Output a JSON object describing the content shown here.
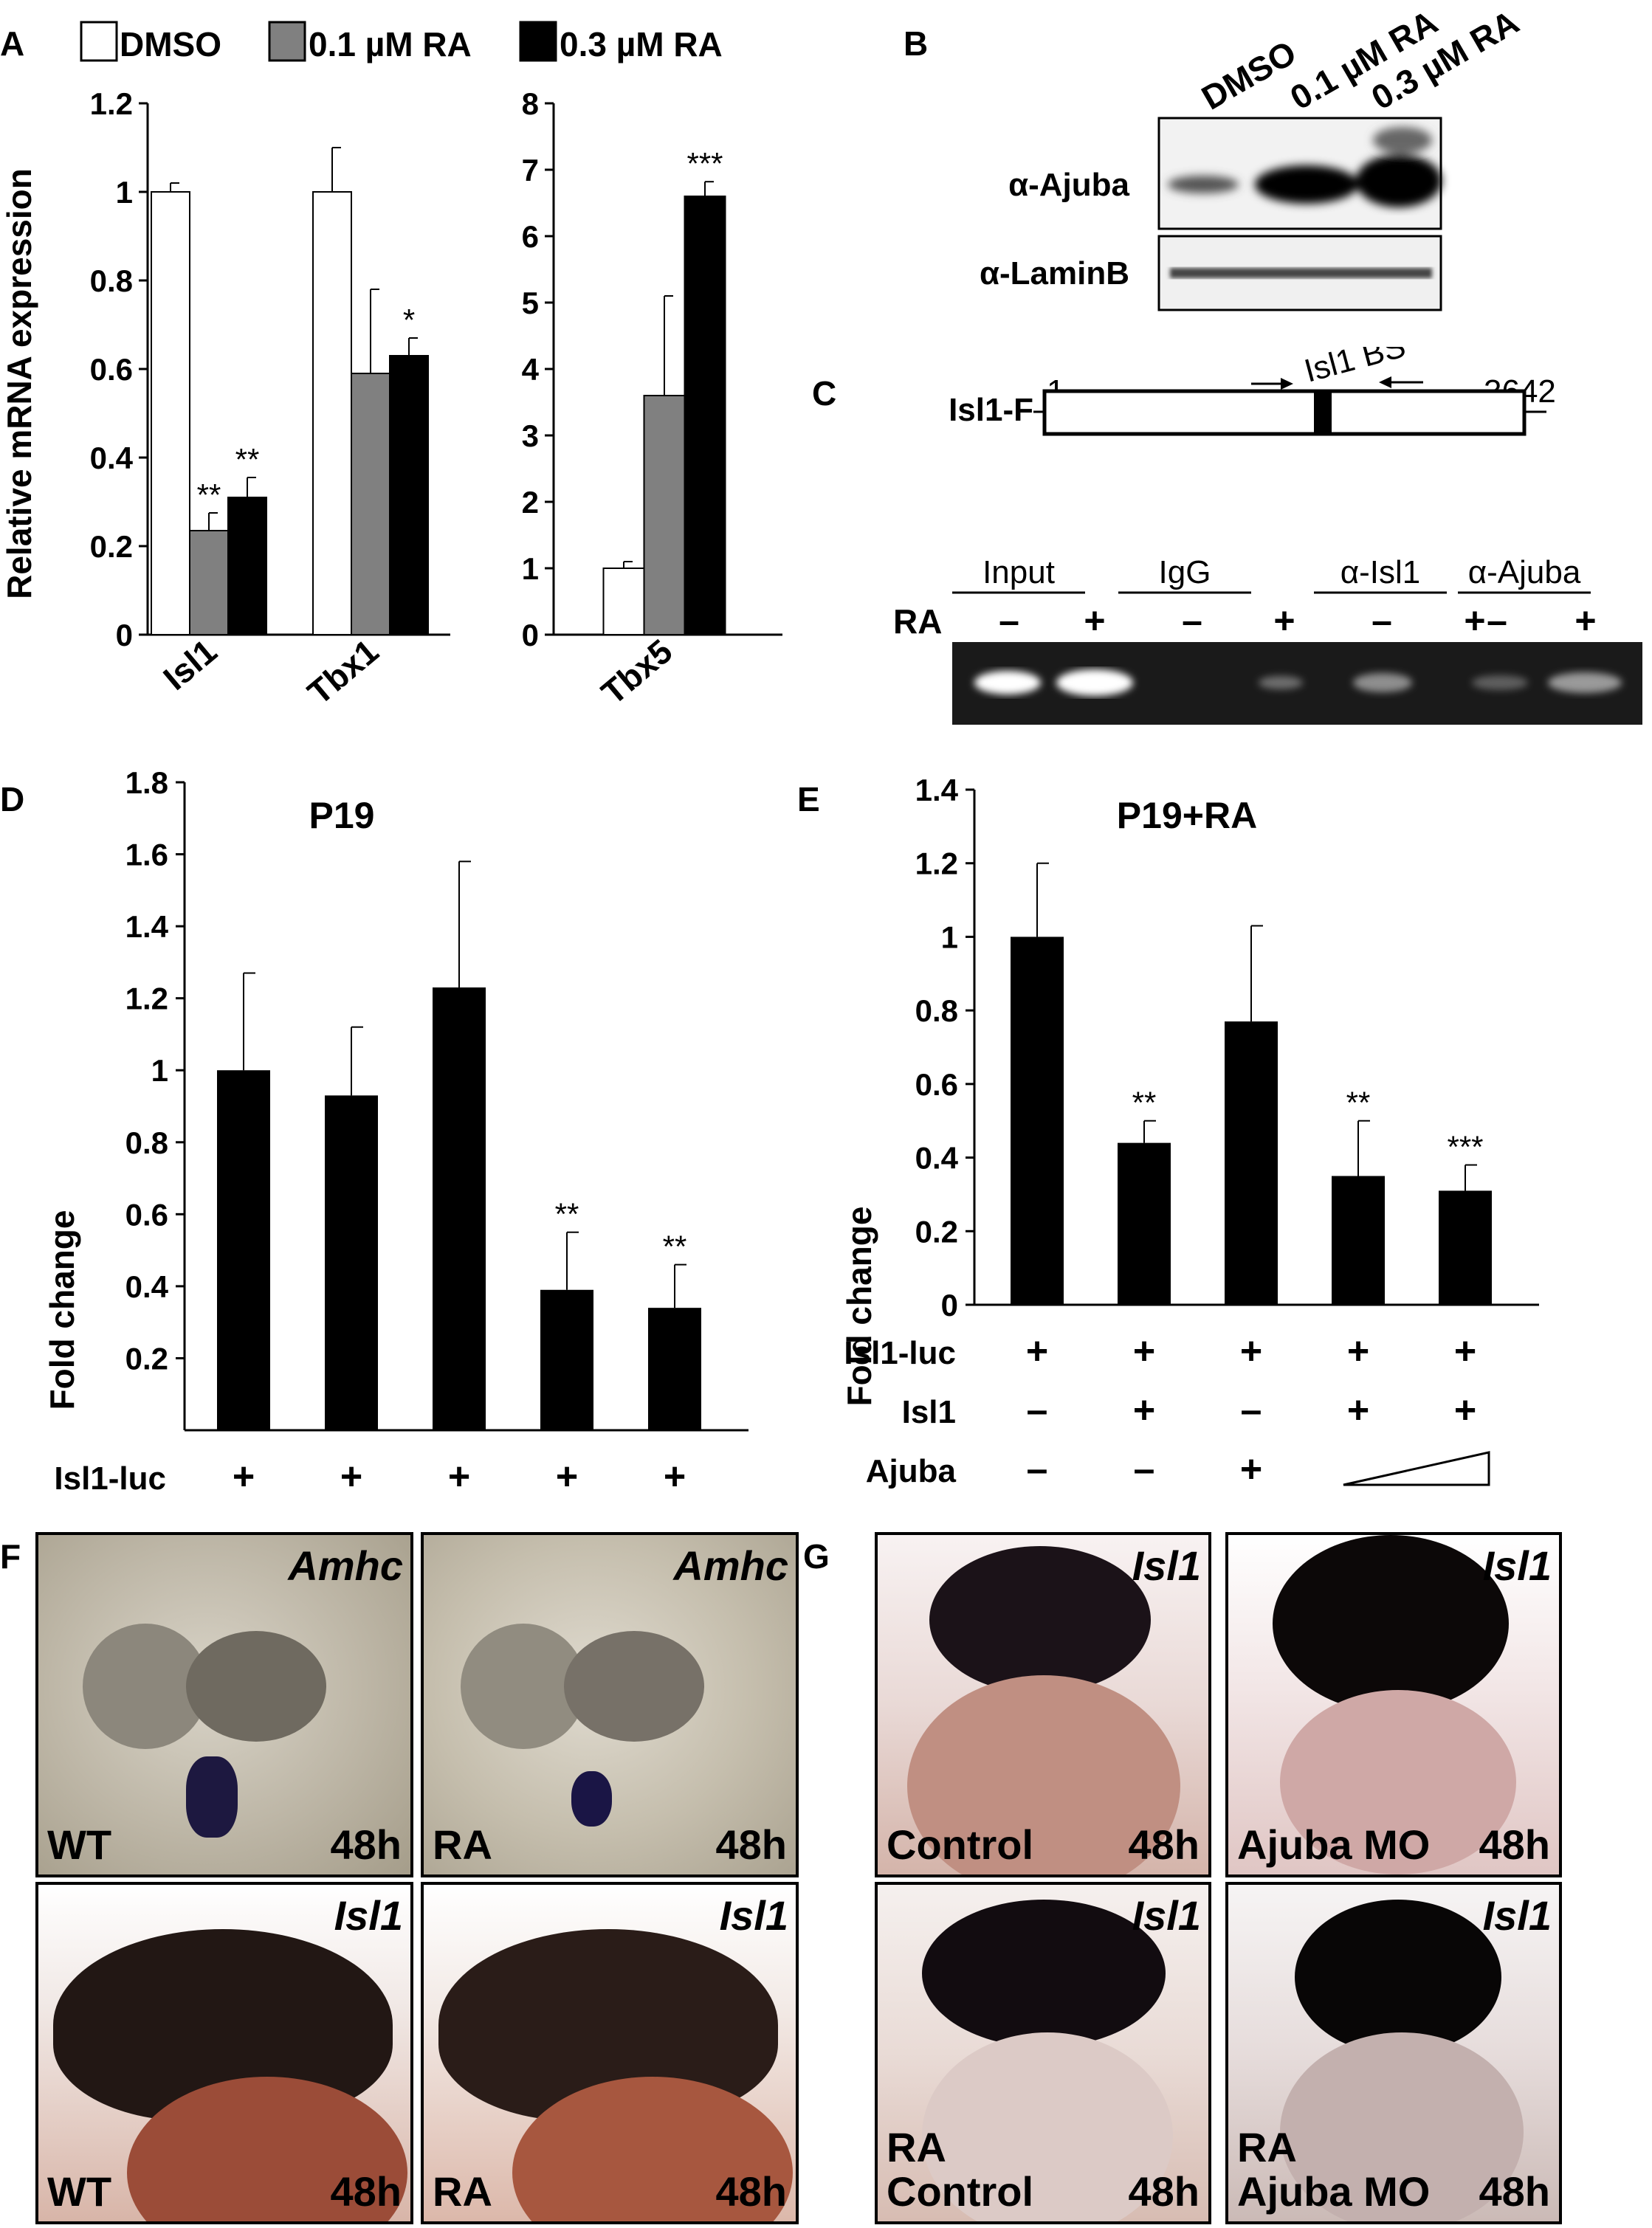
{
  "panels": {
    "A": "A",
    "B": "B",
    "C": "C",
    "D": "D",
    "E": "E",
    "F": "F",
    "G": "G"
  },
  "legend": [
    {
      "label": "DMSO",
      "color": "#ffffff"
    },
    {
      "label": "0.1 µM RA",
      "color": "#808080"
    },
    {
      "label": "0.3 µM RA",
      "color": "#000000"
    }
  ],
  "chart_data": [
    {
      "id": "A-left",
      "type": "bar",
      "ylabel": "Relative mRNA expression",
      "ylim": [
        0,
        1.2
      ],
      "yticks": [
        "0",
        "0.2",
        "0.4",
        "0.6",
        "0.8",
        "1",
        "1.2"
      ],
      "categories": [
        "Isl1",
        "Tbx1"
      ],
      "series": [
        {
          "name": "DMSO",
          "values": [
            1.0,
            1.0
          ],
          "errors": [
            0.02,
            0.1
          ]
        },
        {
          "name": "0.1 µM RA",
          "values": [
            0.235,
            0.59
          ],
          "errors": [
            0.04,
            0.19
          ]
        },
        {
          "name": "0.3 µM RA",
          "values": [
            0.31,
            0.63
          ],
          "errors": [
            0.045,
            0.04
          ]
        }
      ],
      "significance": [
        {
          "category": 0,
          "series": 1,
          "mark": "**"
        },
        {
          "category": 0,
          "series": 2,
          "mark": "**"
        },
        {
          "category": 1,
          "series": 2,
          "mark": "*"
        }
      ]
    },
    {
      "id": "A-right",
      "type": "bar",
      "ylim": [
        0,
        8
      ],
      "yticks": [
        "0",
        "1",
        "2",
        "3",
        "4",
        "5",
        "6",
        "7",
        "8"
      ],
      "categories": [
        "Tbx5"
      ],
      "series": [
        {
          "name": "DMSO",
          "values": [
            1.0
          ],
          "errors": [
            0.1
          ]
        },
        {
          "name": "0.1 µM RA",
          "values": [
            3.6
          ],
          "errors": [
            1.5
          ]
        },
        {
          "name": "0.3 µM RA",
          "values": [
            6.6
          ],
          "errors": [
            0.22
          ]
        }
      ],
      "significance": [
        {
          "category": 0,
          "series": 2,
          "mark": "***"
        }
      ]
    },
    {
      "id": "D",
      "type": "bar",
      "title": "P19",
      "ylabel": "Fold change",
      "ylim": [
        0,
        1.8
      ],
      "yticks": [
        "0.2",
        "0.4",
        "0.6",
        "0.8",
        "1",
        "1.2",
        "1.4",
        "1.6",
        "1.8"
      ],
      "values": [
        1.0,
        0.93,
        1.23,
        0.39,
        0.34
      ],
      "errors": [
        0.27,
        0.19,
        0.35,
        0.16,
        0.12
      ],
      "marks": [
        "",
        "",
        "",
        "**",
        "**"
      ]
    },
    {
      "id": "E",
      "type": "bar",
      "title": "P19+RA",
      "ylabel": "Fold change",
      "ylim": [
        0,
        1.4
      ],
      "yticks": [
        "0",
        "0.2",
        "0.4",
        "0.6",
        "0.8",
        "1",
        "1.2",
        "1.4"
      ],
      "values": [
        1.0,
        0.44,
        0.77,
        0.35,
        0.31
      ],
      "errors": [
        0.2,
        0.06,
        0.26,
        0.15,
        0.07
      ],
      "marks": [
        "",
        "**",
        "",
        "**",
        "***"
      ]
    }
  ],
  "treatments": {
    "row_labels": [
      "Isl1-luc",
      "Isl1",
      "Ajuba"
    ],
    "isl1luc": [
      "+",
      "+",
      "+",
      "+",
      "+"
    ],
    "isl1": [
      "–",
      "+",
      "–",
      "+",
      "+"
    ],
    "ajuba": [
      "–",
      "–",
      "+",
      "wedge",
      "wedge"
    ]
  },
  "blot": {
    "lanes": [
      "DMSO",
      "0.1 µM RA",
      "0.3 µM RA"
    ],
    "rows": [
      "α-Ajuba",
      "α-LaminB"
    ]
  },
  "chip": {
    "construct": "Isl1-F",
    "start": "1",
    "end": "3642",
    "site": "Isl1 BS",
    "groups": [
      "Input",
      "IgG",
      "α-Isl1",
      "α-Ajuba"
    ],
    "ra_label": "RA",
    "ra_signs": [
      "–",
      "+",
      "–",
      "+",
      "–",
      "+",
      "–",
      "+"
    ]
  },
  "photos_F": [
    {
      "gene": "Amhc",
      "cond": "WT",
      "time": "48h"
    },
    {
      "gene": "Amhc",
      "cond": "RA",
      "time": "48h"
    },
    {
      "gene": "Isl1",
      "cond": "WT",
      "time": "48h"
    },
    {
      "gene": "Isl1",
      "cond": "RA",
      "time": "48h"
    }
  ],
  "photos_G": [
    {
      "gene": "Isl1",
      "cond": "Control",
      "time": "48h"
    },
    {
      "gene": "Isl1",
      "cond": "Ajuba MO",
      "time": "48h"
    },
    {
      "gene": "Isl1",
      "cond": "RA",
      "cond2": "Control",
      "time": "48h"
    },
    {
      "gene": "Isl1",
      "cond": "RA",
      "cond2": "Ajuba MO",
      "time": "48h"
    }
  ]
}
